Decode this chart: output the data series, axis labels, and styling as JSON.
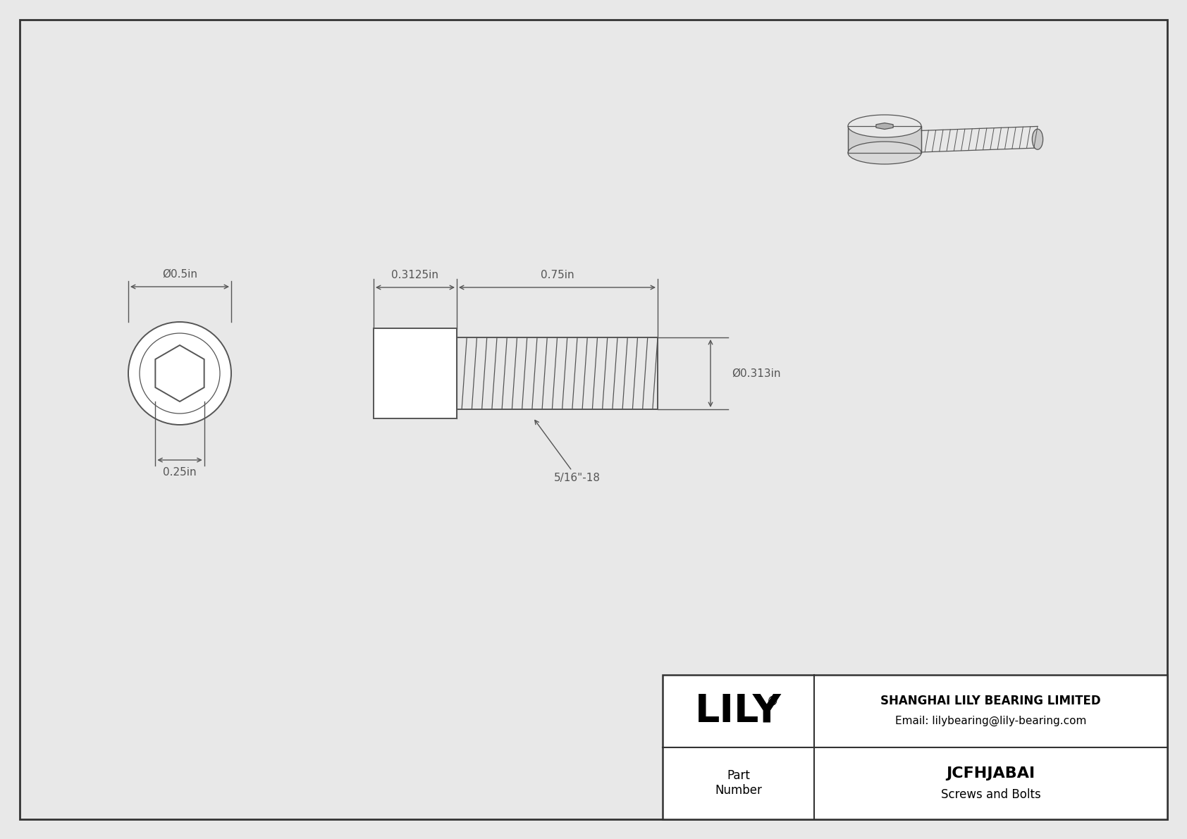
{
  "bg_color": "#e8e8e8",
  "drawing_bg": "#ffffff",
  "line_color": "#555555",
  "dim_color": "#555555",
  "title": "JCFHJABAI",
  "subtitle": "Screws and Bolts",
  "company": "SHANGHAI LILY BEARING LIMITED",
  "email": "Email: lilybearing@lily-bearing.com",
  "part_label": "Part\nNumber",
  "logo": "LILY",
  "dim_head_diam": "Ø0.5in",
  "dim_head_len": "0.3125in",
  "dim_thread_length": "0.75in",
  "dim_thread_dia": "Ø0.313in",
  "dim_hex_key": "0.25in",
  "dim_thread_label": "5/16\"-18",
  "border_color": "#333333"
}
